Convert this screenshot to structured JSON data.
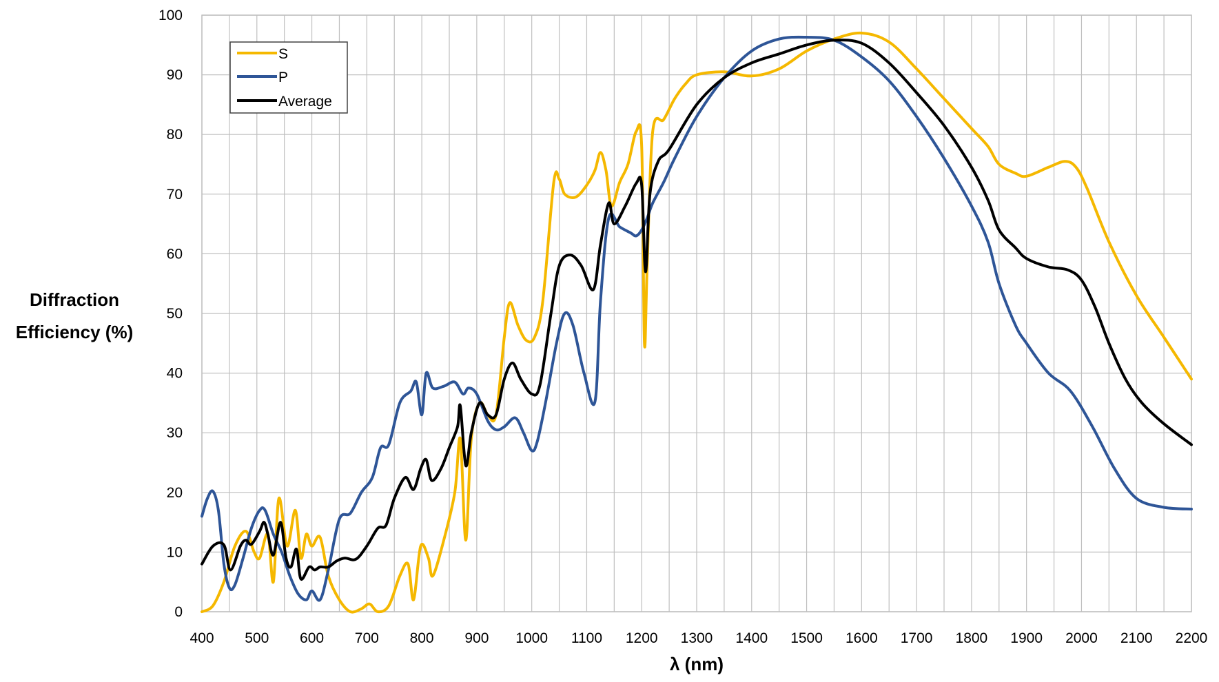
{
  "chart_data": {
    "type": "line",
    "title": "",
    "xlabel": "λ (nm)",
    "ylabel_lines": [
      "Diffraction",
      "Efficiency (%)"
    ],
    "xlim": [
      400,
      2200
    ],
    "ylim": [
      0,
      100
    ],
    "x_major_ticks": [
      400,
      500,
      600,
      700,
      800,
      900,
      1000,
      1100,
      1200,
      1300,
      1400,
      1500,
      1600,
      1700,
      1800,
      1900,
      2000,
      2100,
      2200
    ],
    "x_minor_gridlines_every": 50,
    "y_ticks": [
      0,
      10,
      20,
      30,
      40,
      50,
      60,
      70,
      80,
      90,
      100
    ],
    "grid": true,
    "legend_position": "top-left",
    "series": [
      {
        "name": "S",
        "color": "#F5B800",
        "points": [
          [
            400,
            0
          ],
          [
            420,
            1
          ],
          [
            440,
            5
          ],
          [
            460,
            11
          ],
          [
            480,
            13.5
          ],
          [
            495,
            10
          ],
          [
            505,
            9
          ],
          [
            520,
            13
          ],
          [
            530,
            5
          ],
          [
            540,
            19
          ],
          [
            555,
            11
          ],
          [
            570,
            17
          ],
          [
            580,
            9
          ],
          [
            590,
            13
          ],
          [
            600,
            11
          ],
          [
            615,
            12.5
          ],
          [
            630,
            6
          ],
          [
            650,
            2
          ],
          [
            670,
            0
          ],
          [
            690,
            0.5
          ],
          [
            705,
            1.3
          ],
          [
            720,
            0
          ],
          [
            740,
            1
          ],
          [
            760,
            6
          ],
          [
            775,
            8
          ],
          [
            785,
            2
          ],
          [
            798,
            11
          ],
          [
            812,
            9
          ],
          [
            820,
            6
          ],
          [
            840,
            12
          ],
          [
            860,
            20
          ],
          [
            870,
            29
          ],
          [
            880,
            12
          ],
          [
            890,
            29
          ],
          [
            905,
            35
          ],
          [
            920,
            33
          ],
          [
            935,
            33
          ],
          [
            950,
            46
          ],
          [
            960,
            51.8
          ],
          [
            975,
            48
          ],
          [
            990,
            45.5
          ],
          [
            1005,
            46
          ],
          [
            1020,
            52
          ],
          [
            1040,
            72
          ],
          [
            1050,
            72.5
          ],
          [
            1060,
            70
          ],
          [
            1080,
            69.5
          ],
          [
            1100,
            71.5
          ],
          [
            1115,
            74
          ],
          [
            1125,
            77
          ],
          [
            1135,
            74
          ],
          [
            1145,
            68
          ],
          [
            1160,
            72
          ],
          [
            1175,
            75
          ],
          [
            1190,
            80.5
          ],
          [
            1200,
            78
          ],
          [
            1205,
            45
          ],
          [
            1210,
            58
          ],
          [
            1220,
            80.5
          ],
          [
            1240,
            82.5
          ],
          [
            1260,
            86
          ],
          [
            1280,
            88.5
          ],
          [
            1300,
            90
          ],
          [
            1350,
            90.5
          ],
          [
            1400,
            89.8
          ],
          [
            1450,
            91
          ],
          [
            1500,
            94
          ],
          [
            1550,
            96
          ],
          [
            1600,
            97
          ],
          [
            1650,
            95.5
          ],
          [
            1700,
            91
          ],
          [
            1750,
            86
          ],
          [
            1800,
            81
          ],
          [
            1830,
            78
          ],
          [
            1850,
            75
          ],
          [
            1880,
            73.5
          ],
          [
            1900,
            73
          ],
          [
            1940,
            74.5
          ],
          [
            1970,
            75.5
          ],
          [
            1990,
            74.5
          ],
          [
            2010,
            71
          ],
          [
            2050,
            62
          ],
          [
            2100,
            53
          ],
          [
            2150,
            46
          ],
          [
            2200,
            39
          ]
        ]
      },
      {
        "name": "P",
        "color": "#2E5597",
        "points": [
          [
            400,
            16
          ],
          [
            410,
            19
          ],
          [
            420,
            20.2
          ],
          [
            430,
            17
          ],
          [
            440,
            8
          ],
          [
            450,
            4
          ],
          [
            460,
            4.5
          ],
          [
            475,
            9
          ],
          [
            490,
            14
          ],
          [
            505,
            17
          ],
          [
            515,
            17
          ],
          [
            530,
            13
          ],
          [
            545,
            10
          ],
          [
            560,
            6
          ],
          [
            575,
            3
          ],
          [
            590,
            2
          ],
          [
            600,
            3.5
          ],
          [
            615,
            2
          ],
          [
            630,
            7
          ],
          [
            650,
            15.5
          ],
          [
            670,
            16.5
          ],
          [
            690,
            20
          ],
          [
            710,
            22.5
          ],
          [
            725,
            27.5
          ],
          [
            740,
            28
          ],
          [
            760,
            35
          ],
          [
            780,
            37
          ],
          [
            790,
            38.5
          ],
          [
            800,
            33
          ],
          [
            808,
            40
          ],
          [
            820,
            37.5
          ],
          [
            840,
            37.8
          ],
          [
            860,
            38.5
          ],
          [
            875,
            36.5
          ],
          [
            885,
            37.5
          ],
          [
            900,
            36.5
          ],
          [
            920,
            32
          ],
          [
            935,
            30.5
          ],
          [
            950,
            31
          ],
          [
            970,
            32.5
          ],
          [
            985,
            30
          ],
          [
            1000,
            27
          ],
          [
            1010,
            28.5
          ],
          [
            1025,
            35
          ],
          [
            1045,
            45
          ],
          [
            1060,
            50
          ],
          [
            1075,
            48
          ],
          [
            1095,
            40
          ],
          [
            1115,
            35.2
          ],
          [
            1125,
            52
          ],
          [
            1140,
            66
          ],
          [
            1160,
            64.5
          ],
          [
            1180,
            63.5
          ],
          [
            1190,
            63
          ],
          [
            1200,
            64
          ],
          [
            1210,
            66
          ],
          [
            1220,
            68.5
          ],
          [
            1240,
            72
          ],
          [
            1260,
            76
          ],
          [
            1300,
            83
          ],
          [
            1350,
            89.5
          ],
          [
            1400,
            94
          ],
          [
            1450,
            96
          ],
          [
            1500,
            96.3
          ],
          [
            1550,
            95.8
          ],
          [
            1600,
            93
          ],
          [
            1650,
            89
          ],
          [
            1700,
            83
          ],
          [
            1750,
            76
          ],
          [
            1800,
            68
          ],
          [
            1830,
            62
          ],
          [
            1850,
            55
          ],
          [
            1880,
            48
          ],
          [
            1900,
            45
          ],
          [
            1940,
            40
          ],
          [
            1980,
            37
          ],
          [
            2020,
            31
          ],
          [
            2060,
            24
          ],
          [
            2100,
            19
          ],
          [
            2150,
            17.5
          ],
          [
            2200,
            17.2
          ]
        ]
      },
      {
        "name": "Average",
        "color": "#000000",
        "points": [
          [
            400,
            8
          ],
          [
            420,
            11
          ],
          [
            440,
            11.2
          ],
          [
            452,
            7
          ],
          [
            470,
            11
          ],
          [
            480,
            12
          ],
          [
            490,
            11.3
          ],
          [
            505,
            13.5
          ],
          [
            513,
            15
          ],
          [
            520,
            13
          ],
          [
            530,
            9.5
          ],
          [
            543,
            15
          ],
          [
            553,
            9
          ],
          [
            562,
            7.5
          ],
          [
            572,
            10.5
          ],
          [
            580,
            5.5
          ],
          [
            595,
            7.5
          ],
          [
            605,
            7
          ],
          [
            615,
            7.5
          ],
          [
            630,
            7.5
          ],
          [
            645,
            8.5
          ],
          [
            660,
            9
          ],
          [
            680,
            8.8
          ],
          [
            700,
            11
          ],
          [
            720,
            14
          ],
          [
            735,
            14.5
          ],
          [
            750,
            19
          ],
          [
            770,
            22.5
          ],
          [
            785,
            20.5
          ],
          [
            798,
            24
          ],
          [
            808,
            25.5
          ],
          [
            818,
            22
          ],
          [
            835,
            24
          ],
          [
            850,
            27.5
          ],
          [
            865,
            31
          ],
          [
            870,
            34.5
          ],
          [
            880,
            24.5
          ],
          [
            890,
            30
          ],
          [
            905,
            35
          ],
          [
            920,
            33
          ],
          [
            935,
            33
          ],
          [
            950,
            39
          ],
          [
            965,
            41.7
          ],
          [
            980,
            39
          ],
          [
            1000,
            36.5
          ],
          [
            1015,
            38
          ],
          [
            1035,
            50
          ],
          [
            1050,
            58
          ],
          [
            1070,
            59.8
          ],
          [
            1090,
            58
          ],
          [
            1112,
            54
          ],
          [
            1125,
            61.5
          ],
          [
            1140,
            68.5
          ],
          [
            1150,
            65
          ],
          [
            1170,
            68
          ],
          [
            1190,
            71.8
          ],
          [
            1200,
            71.5
          ],
          [
            1207,
            57
          ],
          [
            1215,
            70
          ],
          [
            1230,
            75.5
          ],
          [
            1250,
            77.5
          ],
          [
            1300,
            85
          ],
          [
            1350,
            89.5
          ],
          [
            1400,
            92
          ],
          [
            1450,
            93.5
          ],
          [
            1500,
            95
          ],
          [
            1550,
            95.8
          ],
          [
            1600,
            95.3
          ],
          [
            1650,
            92
          ],
          [
            1700,
            87
          ],
          [
            1750,
            81.5
          ],
          [
            1800,
            74.5
          ],
          [
            1830,
            69
          ],
          [
            1850,
            64
          ],
          [
            1880,
            61
          ],
          [
            1900,
            59.2
          ],
          [
            1940,
            57.8
          ],
          [
            1975,
            57.3
          ],
          [
            2000,
            55.6
          ],
          [
            2025,
            51
          ],
          [
            2050,
            45
          ],
          [
            2080,
            39
          ],
          [
            2110,
            35
          ],
          [
            2150,
            31.5
          ],
          [
            2200,
            28
          ]
        ]
      }
    ]
  }
}
